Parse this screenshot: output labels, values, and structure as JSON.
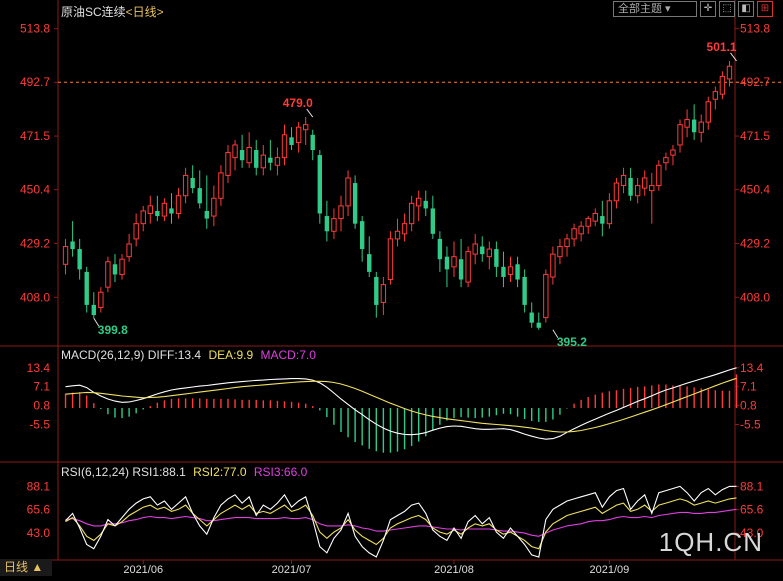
{
  "header": {
    "title": "原油SC连续",
    "period": "<日线>",
    "theme_select": "全部主题 ▾",
    "buttons": [
      "✛",
      "⬚",
      "◧",
      "⊞"
    ]
  },
  "period_tab": "日线 ▲",
  "watermark": "1QH.CN",
  "colors": {
    "up": "#ff3a3a",
    "down": "#2ecc88",
    "diff": "#ffffff",
    "dea": "#f0e060",
    "macd": "#e040e0",
    "rsi1": "#ffffff",
    "rsi2": "#f0e060",
    "rsi3": "#e040e0",
    "axis_text": "#ff3a3a",
    "grid": "#8b1a1a"
  },
  "chart_data": [
    {
      "type": "candlestick",
      "title": "原油SC连续",
      "period": "日线",
      "y_ticks": [
        "513.8",
        "492.7",
        "471.5",
        "450.4",
        "429.2",
        "408.0"
      ],
      "ylim": [
        390,
        518
      ],
      "x_labels": [
        "2021/06",
        "2021/07",
        "2021/08",
        "2021/09"
      ],
      "x_label_index": [
        11,
        32,
        55,
        77
      ],
      "last_price_line": 492.7,
      "annotations": [
        {
          "label": "479.0",
          "index": 35,
          "value": 479.0,
          "kind": "high"
        },
        {
          "label": "399.8",
          "index": 4,
          "value": 399.8,
          "kind": "low"
        },
        {
          "label": "395.2",
          "index": 69,
          "value": 395.2,
          "kind": "low"
        },
        {
          "label": "501.1",
          "index": 95,
          "value": 501.1,
          "kind": "high"
        }
      ],
      "ohlc": [
        [
          421,
          431,
          417,
          428
        ],
        [
          430,
          438,
          424,
          427
        ],
        [
          427,
          431,
          415,
          419
        ],
        [
          418,
          420,
          402,
          405
        ],
        [
          405,
          410,
          399.8,
          401
        ],
        [
          404,
          412,
          402,
          410
        ],
        [
          412,
          424,
          410,
          422
        ],
        [
          421,
          425,
          414,
          417
        ],
        [
          417,
          425,
          415,
          423
        ],
        [
          424,
          433,
          422,
          429
        ],
        [
          431,
          441,
          428,
          437
        ],
        [
          437,
          444,
          434,
          442
        ],
        [
          441,
          448,
          437,
          444
        ],
        [
          442,
          448,
          438,
          440
        ],
        [
          440,
          447,
          438,
          445
        ],
        [
          443,
          449,
          437,
          441
        ],
        [
          441,
          451,
          439,
          448
        ],
        [
          448,
          459,
          445,
          456
        ],
        [
          455,
          460,
          449,
          451
        ],
        [
          451,
          458,
          443,
          445
        ],
        [
          442,
          456,
          435,
          439
        ],
        [
          440,
          452,
          436,
          447
        ],
        [
          447,
          460,
          444,
          457
        ],
        [
          456,
          468,
          453,
          465
        ],
        [
          463,
          470,
          458,
          468
        ],
        [
          466,
          472,
          459,
          462
        ],
        [
          461,
          473,
          459,
          467
        ],
        [
          466,
          470,
          456,
          459
        ],
        [
          459,
          468,
          456,
          464
        ],
        [
          463,
          470,
          458,
          461
        ],
        [
          460,
          467,
          456,
          463
        ],
        [
          463,
          476,
          460,
          472
        ],
        [
          471,
          475,
          466,
          468
        ],
        [
          469,
          477,
          465,
          475
        ],
        [
          474,
          479,
          468,
          476
        ],
        [
          472,
          474,
          462,
          466
        ],
        [
          464,
          466,
          437,
          441
        ],
        [
          440,
          446,
          430,
          434
        ],
        [
          434,
          443,
          431,
          439
        ],
        [
          439,
          448,
          434,
          444
        ],
        [
          444,
          458,
          440,
          455
        ],
        [
          453,
          456,
          435,
          437
        ],
        [
          438,
          440,
          422,
          427
        ],
        [
          425,
          432,
          416,
          418
        ],
        [
          416,
          418,
          400,
          405
        ],
        [
          406,
          416,
          401,
          413
        ],
        [
          415,
          434,
          413,
          431
        ],
        [
          431,
          439,
          428,
          434
        ],
        [
          433,
          441,
          430,
          437
        ],
        [
          437,
          448,
          434,
          445
        ],
        [
          444,
          450,
          438,
          447
        ],
        [
          446,
          450,
          440,
          443
        ],
        [
          443,
          448,
          431,
          433
        ],
        [
          431,
          434,
          418,
          423
        ],
        [
          424,
          428,
          412,
          419
        ],
        [
          420,
          430,
          416,
          424
        ],
        [
          423,
          431,
          412,
          415
        ],
        [
          414,
          428,
          412,
          426
        ],
        [
          425,
          433,
          421,
          429
        ],
        [
          428,
          432,
          422,
          425
        ],
        [
          424,
          430,
          419,
          427
        ],
        [
          427,
          430,
          416,
          420
        ],
        [
          420,
          426,
          412,
          416
        ],
        [
          417,
          424,
          414,
          420
        ],
        [
          421,
          424,
          412,
          415
        ],
        [
          416,
          419,
          402,
          405
        ],
        [
          402,
          406,
          396,
          398
        ],
        [
          398,
          402,
          395.2,
          396
        ],
        [
          400,
          419,
          398,
          417
        ],
        [
          416,
          428,
          413,
          425
        ],
        [
          424,
          431,
          421,
          428
        ],
        [
          428,
          433,
          424,
          431
        ],
        [
          431,
          437,
          428,
          435
        ],
        [
          433,
          438,
          430,
          436
        ],
        [
          436,
          440,
          433,
          439
        ],
        [
          438,
          443,
          436,
          441
        ],
        [
          440,
          446,
          432,
          437
        ],
        [
          437,
          449,
          435,
          446
        ],
        [
          446,
          455,
          443,
          453
        ],
        [
          452,
          459,
          449,
          456
        ],
        [
          455,
          459,
          446,
          448
        ],
        [
          448,
          455,
          445,
          452
        ],
        [
          451,
          458,
          448,
          455
        ],
        [
          450,
          457,
          437,
          452
        ],
        [
          452,
          462,
          450,
          460
        ],
        [
          461,
          465,
          458,
          463
        ],
        [
          464,
          468,
          460,
          466
        ],
        [
          468,
          478,
          465,
          476
        ],
        [
          475,
          482,
          471,
          478
        ],
        [
          478,
          484,
          470,
          473
        ],
        [
          473,
          480,
          469,
          477
        ],
        [
          477,
          487,
          474,
          485
        ],
        [
          486,
          491,
          482,
          489
        ],
        [
          488,
          497,
          486,
          495
        ],
        [
          494,
          501.1,
          491,
          499
        ]
      ]
    },
    {
      "type": "line",
      "title": "MACD(26,12,9)",
      "legend": [
        {
          "name": "DIFF",
          "value": "13.4",
          "color": "#ffffff"
        },
        {
          "name": "DEA",
          "value": "9.9",
          "color": "#f0e060"
        },
        {
          "name": "MACD",
          "value": "7.0",
          "color": "#e040e0"
        }
      ],
      "y_ticks": [
        "13.4",
        "7.1",
        "0.8",
        "-5.5"
      ],
      "ylim": [
        -17,
        16
      ],
      "diff": [
        7.1,
        7.4,
        7.6,
        6.8,
        5.2,
        4.0,
        3.0,
        2.3,
        1.9,
        2.0,
        2.5,
        3.1,
        3.9,
        4.7,
        5.4,
        6.0,
        6.4,
        6.7,
        7.0,
        7.3,
        7.5,
        7.8,
        8.1,
        8.4,
        8.6,
        8.8,
        9.0,
        9.2,
        9.3,
        9.5,
        9.6,
        9.7,
        9.8,
        9.8,
        9.7,
        9.3,
        8.4,
        6.9,
        5.0,
        3.0,
        1.2,
        -0.6,
        -2.2,
        -3.9,
        -5.4,
        -6.7,
        -7.7,
        -8.4,
        -8.8,
        -8.9,
        -8.7,
        -8.2,
        -7.4,
        -6.7,
        -6.2,
        -6.0,
        -6.1,
        -6.5,
        -6.9,
        -7.1,
        -7.1,
        -7.0,
        -6.9,
        -7.2,
        -7.9,
        -8.7,
        -9.4,
        -10.0,
        -10.4,
        -10.2,
        -9.4,
        -8.1,
        -6.9,
        -5.8,
        -4.7,
        -3.7,
        -2.7,
        -1.7,
        -0.8,
        0.2,
        1.2,
        2.2,
        3.1,
        4.1,
        5.1,
        6.0,
        6.7,
        7.5,
        8.3,
        9.0,
        9.7,
        10.4,
        11.1,
        11.9,
        12.7,
        13.4
      ],
      "dea": [
        4.6,
        4.8,
        5.0,
        5.2,
        5.1,
        4.9,
        4.6,
        4.3,
        4.0,
        3.8,
        3.6,
        3.4,
        3.5,
        3.6,
        3.8,
        4.1,
        4.4,
        4.7,
        5.0,
        5.3,
        5.6,
        5.9,
        6.2,
        6.5,
        6.8,
        7.1,
        7.3,
        7.5,
        7.7,
        7.9,
        8.1,
        8.3,
        8.5,
        8.7,
        8.8,
        8.9,
        8.9,
        8.8,
        8.5,
        8.0,
        7.3,
        6.5,
        5.6,
        4.6,
        3.6,
        2.6,
        1.6,
        0.7,
        -0.2,
        -1.0,
        -1.7,
        -2.3,
        -2.8,
        -3.2,
        -3.6,
        -3.9,
        -4.2,
        -4.5,
        -4.8,
        -5.1,
        -5.3,
        -5.5,
        -5.7,
        -5.9,
        -6.1,
        -6.4,
        -6.7,
        -7.1,
        -7.5,
        -7.8,
        -8.0,
        -8.0,
        -7.8,
        -7.5,
        -7.0,
        -6.5,
        -5.9,
        -5.2,
        -4.5,
        -3.8,
        -3.0,
        -2.2,
        -1.4,
        -0.6,
        0.2,
        1.1,
        2.0,
        2.9,
        3.8,
        4.7,
        5.6,
        6.5,
        7.4,
        8.3,
        9.1,
        9.9
      ],
      "macd": [
        3.0,
        3.2,
        3.3,
        2.6,
        1.0,
        -0.2,
        -1.3,
        -2.0,
        -2.1,
        -1.8,
        -1.1,
        -0.3,
        0.4,
        1.1,
        1.6,
        1.9,
        2.0,
        2.0,
        2.0,
        2.0,
        1.9,
        1.9,
        1.9,
        1.9,
        1.8,
        1.7,
        1.7,
        1.7,
        1.6,
        1.6,
        1.5,
        1.4,
        1.3,
        1.1,
        0.9,
        0.4,
        -0.5,
        -1.9,
        -3.5,
        -5.0,
        -6.1,
        -7.1,
        -7.8,
        -8.5,
        -9.0,
        -9.3,
        -9.3,
        -9.1,
        -8.6,
        -7.9,
        -7.0,
        -5.9,
        -4.6,
        -3.5,
        -2.6,
        -2.1,
        -1.9,
        -2.0,
        -2.1,
        -2.0,
        -1.8,
        -1.5,
        -1.2,
        -1.3,
        -1.8,
        -2.3,
        -2.7,
        -2.9,
        -2.9,
        -2.4,
        -1.4,
        -0.1,
        0.9,
        1.7,
        2.3,
        2.8,
        3.2,
        3.5,
        3.7,
        4.0,
        4.2,
        4.4,
        4.5,
        4.7,
        4.9,
        4.9,
        4.7,
        4.6,
        4.5,
        4.3,
        4.1,
        3.9,
        3.7,
        3.6,
        3.6,
        7.0
      ]
    },
    {
      "type": "line",
      "title": "RSI(6,12,24)",
      "legend": [
        {
          "name": "RSI1",
          "value": "88.1",
          "color": "#ffffff"
        },
        {
          "name": "RSI2",
          "value": "77.0",
          "color": "#f0e060"
        },
        {
          "name": "RSI3",
          "value": "66.0",
          "color": "#e040e0"
        }
      ],
      "y_ticks": [
        "88.1",
        "65.6",
        "43.0"
      ],
      "ylim": [
        20,
        100
      ],
      "rsi1": [
        55,
        62,
        48,
        32,
        28,
        40,
        56,
        50,
        58,
        66,
        72,
        76,
        78,
        70,
        74,
        66,
        72,
        78,
        62,
        50,
        42,
        58,
        70,
        76,
        80,
        72,
        78,
        60,
        70,
        66,
        72,
        80,
        68,
        74,
        78,
        56,
        30,
        24,
        38,
        46,
        62,
        40,
        30,
        24,
        20,
        36,
        56,
        60,
        64,
        70,
        72,
        62,
        46,
        40,
        36,
        48,
        38,
        54,
        60,
        52,
        58,
        44,
        38,
        48,
        40,
        32,
        22,
        20,
        56,
        66,
        70,
        74,
        76,
        78,
        80,
        82,
        68,
        78,
        84,
        86,
        66,
        74,
        80,
        62,
        82,
        84,
        86,
        88,
        82,
        74,
        82,
        86,
        80,
        85,
        88,
        88.1
      ],
      "rsi2": [
        54,
        58,
        50,
        40,
        36,
        42,
        52,
        50,
        54,
        60,
        64,
        68,
        70,
        66,
        68,
        64,
        66,
        70,
        62,
        56,
        50,
        56,
        62,
        66,
        70,
        66,
        70,
        62,
        64,
        62,
        66,
        70,
        64,
        66,
        70,
        60,
        44,
        38,
        44,
        48,
        56,
        46,
        40,
        36,
        32,
        38,
        48,
        52,
        55,
        58,
        60,
        56,
        48,
        44,
        42,
        46,
        42,
        48,
        52,
        50,
        52,
        46,
        42,
        44,
        40,
        36,
        30,
        28,
        44,
        52,
        56,
        60,
        62,
        64,
        66,
        68,
        62,
        66,
        70,
        72,
        64,
        66,
        70,
        64,
        70,
        72,
        74,
        76,
        74,
        70,
        72,
        74,
        72,
        74,
        76,
        77
      ],
      "rsi3": [
        56,
        57,
        55,
        52,
        50,
        50,
        52,
        52,
        53,
        55,
        56,
        58,
        59,
        58,
        58,
        57,
        58,
        59,
        58,
        57,
        55,
        55,
        56,
        57,
        58,
        58,
        58,
        57,
        57,
        57,
        57,
        58,
        57,
        57,
        58,
        56,
        52,
        50,
        50,
        50,
        51,
        50,
        48,
        47,
        45,
        45,
        46,
        47,
        48,
        49,
        50,
        50,
        49,
        48,
        47,
        47,
        46,
        47,
        47,
        47,
        47,
        46,
        45,
        45,
        44,
        43,
        41,
        40,
        43,
        46,
        48,
        50,
        51,
        52,
        54,
        55,
        55,
        56,
        58,
        59,
        58,
        58,
        59,
        58,
        60,
        61,
        62,
        63,
        63,
        62,
        62,
        63,
        63,
        64,
        65,
        66
      ]
    }
  ]
}
